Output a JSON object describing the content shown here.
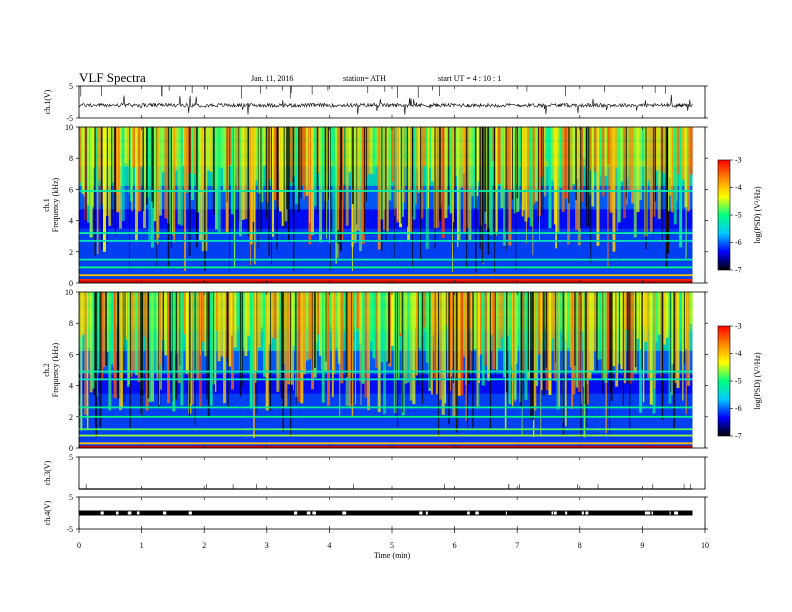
{
  "header": {
    "title": "VLF  Spectra",
    "date": "Jan. 11, 2016",
    "station": "station= ATH",
    "start": "start  UT  =   4  : 10 : 1"
  },
  "colors": {
    "colormap": [
      "#000000",
      "#0000ff",
      "#00c8ff",
      "#00ff80",
      "#ffff00",
      "#ff8800",
      "#ff0000",
      "#ffffff"
    ],
    "trace": "#000000"
  },
  "chart_data": [
    {
      "type": "line",
      "panel": "ch1-waveform",
      "ylabel": "ch.1(V)",
      "ylim": [
        -5,
        5
      ],
      "yticks": [
        "5",
        "-5"
      ],
      "description_values": {
        "baseline": -1,
        "noise_amplitude": 0.6
      }
    },
    {
      "type": "heatmap",
      "panel": "ch1-spectrogram",
      "ylabel": "ch.1\nFrequency  (kHz)",
      "ylabel_top": "ch.1",
      "ylabel_bottom": "Frequency  (kHz)",
      "ylim": [
        0,
        10
      ],
      "yticks": [
        "0",
        "2",
        "4",
        "6",
        "8",
        "10"
      ],
      "xlim": [
        0,
        10
      ],
      "colorbar": {
        "label": "log(PSD) (V²/Hz)",
        "ticks": [
          "-3",
          "-4",
          "-5",
          "-6",
          "-7"
        ],
        "range": [
          -7,
          -3
        ]
      },
      "bands_kHz": [
        {
          "f": 0.2,
          "level": -3.2
        },
        {
          "f": 0.5,
          "level": -4.0
        },
        {
          "f": 1.0,
          "level": -5.0
        },
        {
          "f": 1.5,
          "level": -5.2
        },
        {
          "f": 2.7,
          "level": -5.3
        },
        {
          "f": 3.2,
          "level": -5.2
        },
        {
          "f": 5.9,
          "level": -5.2
        }
      ]
    },
    {
      "type": "heatmap",
      "panel": "ch2-spectrogram",
      "ylabel_top": "ch.2",
      "ylabel_bottom": "Frequency  (kHz)",
      "ylim": [
        0,
        10
      ],
      "yticks": [
        "0",
        "2",
        "4",
        "6",
        "8",
        "10"
      ],
      "xlim": [
        0,
        10
      ],
      "colorbar": {
        "label": "log(PSD) (V²/Hz)",
        "ticks": [
          "-3",
          "-4",
          "-5",
          "-6",
          "-7"
        ],
        "range": [
          -7,
          -3
        ]
      },
      "bands_kHz": [
        {
          "f": 0.3,
          "level": -4.0
        },
        {
          "f": 0.8,
          "level": -4.6
        },
        {
          "f": 1.2,
          "level": -4.8
        },
        {
          "f": 2.0,
          "level": -5.0
        },
        {
          "f": 2.6,
          "level": -5.1
        },
        {
          "f": 4.4,
          "level": -5.3
        },
        {
          "f": 4.9,
          "level": -5.2
        }
      ]
    },
    {
      "type": "line",
      "panel": "ch3-waveform",
      "ylabel": "ch.3(V)",
      "ylim": [
        -5,
        5
      ],
      "yticks": [
        "5"
      ]
    },
    {
      "type": "line",
      "panel": "ch4-waveform",
      "ylabel": "ch.4(V)",
      "ylim": [
        -5,
        5
      ],
      "yticks": [
        "5",
        "-5"
      ],
      "description_values": {
        "baseline": 0
      }
    }
  ],
  "xaxis": {
    "label": "Time  (min)",
    "xlim": [
      0,
      10
    ],
    "ticks": [
      "0",
      "1",
      "2",
      "3",
      "4",
      "5",
      "6",
      "7",
      "8",
      "9",
      "10"
    ],
    "data_end_min": 9.8
  }
}
